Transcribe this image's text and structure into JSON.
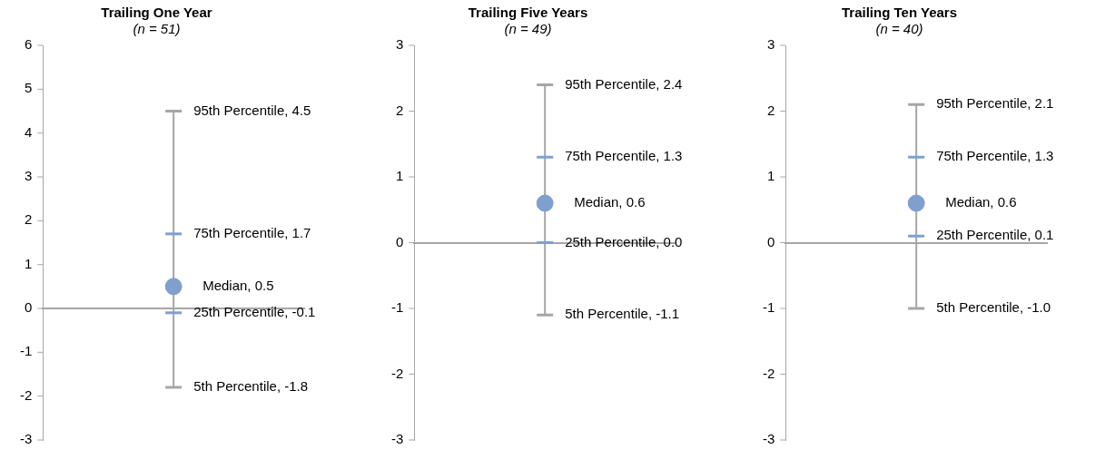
{
  "chart_data": [
    {
      "type": "box",
      "title": "Trailing One Year",
      "subtitle": "(n = 51)",
      "categories": [
        null
      ],
      "color": "#7f9fcf",
      "boxes": [
        {
          "low": -1.8,
          "q1": -0.1,
          "median": 0.5,
          "q3": 1.7,
          "high": 4.5
        }
      ],
      "ylim": [
        -3,
        6
      ],
      "yticks": [
        -3,
        -2,
        -1,
        0,
        1,
        2,
        3,
        4,
        5,
        6
      ],
      "legend": false,
      "annotations": [
        "95th Percentile, 4.5",
        "75th Percentile, 1.7",
        "Median, 0.5",
        "25th Percentile, -0.1",
        "5th Percentile, -1.8"
      ]
    },
    {
      "type": "box",
      "title": "Trailing Five Years",
      "subtitle": "(n = 49)",
      "categories": [
        null
      ],
      "color": "#7f9fcf",
      "boxes": [
        {
          "low": -1.1,
          "q1": 0.0,
          "median": 0.6,
          "q3": 1.3,
          "high": 2.4
        }
      ],
      "ylim": [
        -3,
        3
      ],
      "yticks": [
        -3,
        -2,
        -1,
        0,
        1,
        2,
        3
      ],
      "legend": false,
      "annotations": [
        "95th Percentile, 2.4",
        "75th Percentile, 1.3",
        "Median, 0.6",
        "25th Percentile, 0.0",
        "5th Percentile, -1.1"
      ]
    },
    {
      "type": "box",
      "title": "Trailing Ten Years",
      "subtitle": "(n = 40)",
      "categories": [
        null
      ],
      "color": "#7f9fcf",
      "boxes": [
        {
          "low": -1.0,
          "q1": 0.1,
          "median": 0.6,
          "q3": 1.3,
          "high": 2.1
        }
      ],
      "ylim": [
        -3,
        3
      ],
      "yticks": [
        -3,
        -2,
        -1,
        0,
        1,
        2,
        3
      ],
      "legend": false,
      "annotations": [
        "95th Percentile, 2.1",
        "75th Percentile, 1.3",
        "Median, 0.6",
        "25th Percentile, 0.1",
        "5th Percentile, -1.0"
      ]
    }
  ]
}
